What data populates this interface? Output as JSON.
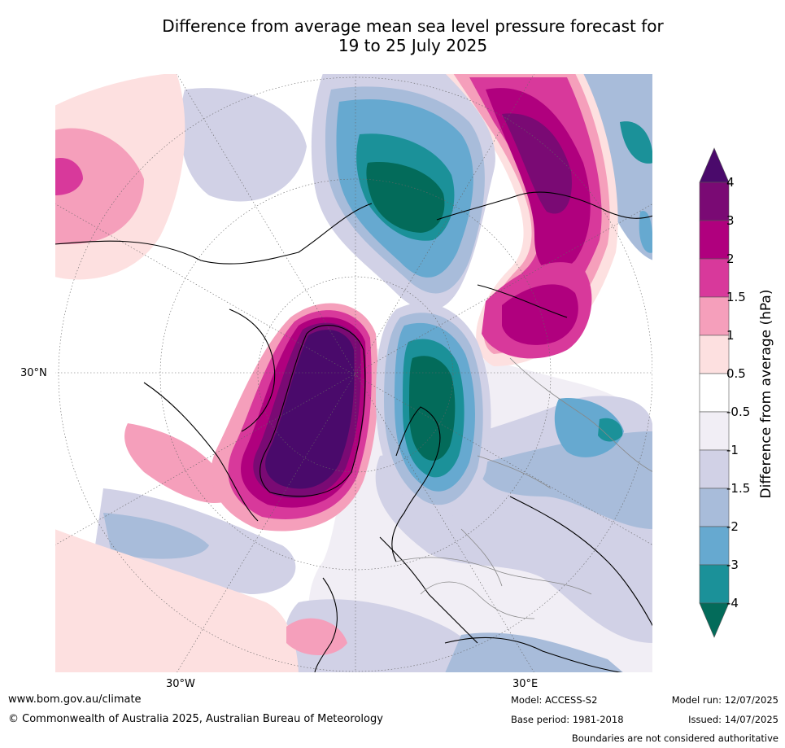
{
  "title_line1": "Difference from average mean sea level pressure forecast for",
  "title_line2": "19 to 25 July 2025",
  "map": {
    "lat_labels": [
      "30°N"
    ],
    "lon_labels": [
      "30°W",
      "30°E"
    ]
  },
  "colorbar": {
    "title": "Difference from average (hPa)",
    "ticks": [
      "4",
      "3",
      "2",
      "1.5",
      "1",
      "0.5",
      "-0.5",
      "-1",
      "-1.5",
      "-2",
      "-3",
      "-4"
    ],
    "colors": {
      "gt4": "#4a0a6b",
      "3_4": "#7a0a74",
      "2_3": "#b0007e",
      "1.5_2": "#d8399b",
      "1_1.5": "#f59fbb",
      "0.5_1": "#fde0e0",
      "-0.5_0.5": "#ffffff",
      "-1_-0.5": "#f1eef5",
      "-1.5_-1": "#d1d1e6",
      "-2_-1.5": "#a8bcda",
      "-3_-2": "#66a9d0",
      "-4_-3": "#1b9199",
      "lt-4": "#036b5a"
    }
  },
  "footer": {
    "website": "www.bom.gov.au/climate",
    "copyright": "© Commonwealth of Australia 2025, Australian Bureau of Meteorology",
    "model": "Model: ACCESS-S2",
    "base_period": "Base period: 1981-2018",
    "model_run": "Model run: 12/07/2025",
    "issued": "Issued: 14/07/2025",
    "boundaries": "Boundaries are not considered authoritative"
  }
}
